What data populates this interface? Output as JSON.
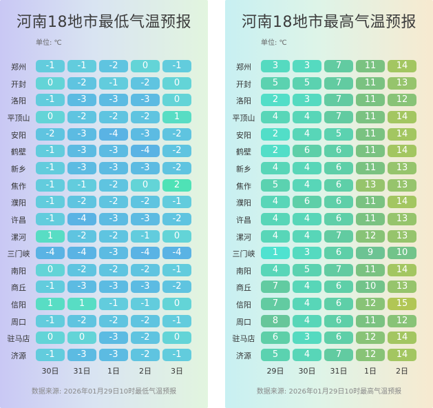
{
  "panels": [
    {
      "id": "low",
      "title": "河南18地市最低气温预报",
      "unit": "单位: ℃",
      "footer": "数据来源: 2026年01月29日10时最低气温预报"
    },
    {
      "id": "high",
      "title": "河南18地市最高气温预报",
      "unit": "单位: ℃",
      "footer": "数据来源: 2026年01月29日10时最高气温预报"
    }
  ],
  "chart_data": [
    {
      "type": "heatmap",
      "title": "河南18地市最低气温预报",
      "unit": "单位: ℃",
      "columns": [
        "30日",
        "31日",
        "1日",
        "2日",
        "3日"
      ],
      "rows": [
        "郑州",
        "开封",
        "洛阳",
        "平顶山",
        "安阳",
        "鹤壁",
        "新乡",
        "焦作",
        "濮阳",
        "许昌",
        "漯河",
        "三门峡",
        "南阳",
        "商丘",
        "信阳",
        "周口",
        "驻马店",
        "济源"
      ],
      "values": [
        [
          -1,
          -1,
          -2,
          0,
          -1
        ],
        [
          0,
          -2,
          -1,
          -2,
          0
        ],
        [
          -1,
          -3,
          -3,
          -3,
          0
        ],
        [
          0,
          -2,
          -2,
          -2,
          1
        ],
        [
          -2,
          -3,
          -4,
          -3,
          -2
        ],
        [
          -1,
          -3,
          -3,
          -4,
          -2
        ],
        [
          -1,
          -3,
          -3,
          -3,
          -2
        ],
        [
          -1,
          -1,
          -2,
          0,
          2
        ],
        [
          -1,
          -2,
          -2,
          -2,
          -1
        ],
        [
          -1,
          -4,
          -3,
          -3,
          -2
        ],
        [
          1,
          -2,
          -2,
          -1,
          0
        ],
        [
          -4,
          -4,
          -3,
          -4,
          -4
        ],
        [
          0,
          -2,
          -2,
          -2,
          -1
        ],
        [
          -1,
          -3,
          -3,
          -3,
          -2
        ],
        [
          1,
          1,
          -1,
          -1,
          0
        ],
        [
          -1,
          -2,
          -2,
          -2,
          -1
        ],
        [
          0,
          0,
          -3,
          -2,
          0
        ],
        [
          -1,
          -3,
          -3,
          -2,
          -1
        ]
      ],
      "colors": {
        "-4": "#5ab3e4",
        "-3": "#5cbbe2",
        "-2": "#5fc4e0",
        "-1": "#62ccdd",
        "0": "#63d4d7",
        "1": "#58ddc4",
        "2": "#4fe2b6"
      },
      "footer": "数据来源: 2026年01月29日10时最低气温预报"
    },
    {
      "type": "heatmap",
      "title": "河南18地市最高气温预报",
      "unit": "单位: ℃",
      "columns": [
        "29日",
        "30日",
        "31日",
        "1日",
        "2日"
      ],
      "rows": [
        "郑州",
        "开封",
        "洛阳",
        "平顶山",
        "安阳",
        "鹤壁",
        "新乡",
        "焦作",
        "濮阳",
        "许昌",
        "漯河",
        "三门峡",
        "南阳",
        "商丘",
        "信阳",
        "周口",
        "驻马店",
        "济源"
      ],
      "values": [
        [
          3,
          3,
          7,
          11,
          14
        ],
        [
          5,
          5,
          7,
          11,
          13
        ],
        [
          2,
          3,
          7,
          11,
          12
        ],
        [
          4,
          4,
          7,
          11,
          14
        ],
        [
          2,
          4,
          5,
          11,
          14
        ],
        [
          2,
          6,
          6,
          11,
          14
        ],
        [
          4,
          4,
          6,
          11,
          13
        ],
        [
          5,
          4,
          6,
          13,
          13
        ],
        [
          4,
          6,
          6,
          11,
          14
        ],
        [
          4,
          4,
          6,
          11,
          13
        ],
        [
          4,
          4,
          7,
          12,
          13
        ],
        [
          1,
          3,
          6,
          9,
          10
        ],
        [
          4,
          5,
          7,
          11,
          14
        ],
        [
          7,
          4,
          6,
          10,
          13
        ],
        [
          7,
          4,
          6,
          12,
          15
        ],
        [
          8,
          4,
          6,
          11,
          12
        ],
        [
          6,
          3,
          6,
          12,
          14
        ],
        [
          5,
          4,
          7,
          12,
          14
        ]
      ],
      "colors": {
        "1": "#4fe2d0",
        "2": "#52dec8",
        "3": "#55dac0",
        "4": "#58d6b8",
        "5": "#5bd2b0",
        "6": "#5ecfa8",
        "7": "#62cba1",
        "8": "#66c69a",
        "9": "#6cc393",
        "10": "#72c38a",
        "11": "#7ac281",
        "12": "#88c377",
        "13": "#96c46c",
        "14": "#a3c661",
        "15": "#b1c655"
      },
      "footer": "数据来源: 2026年01月29日10时最高气温预报"
    }
  ]
}
